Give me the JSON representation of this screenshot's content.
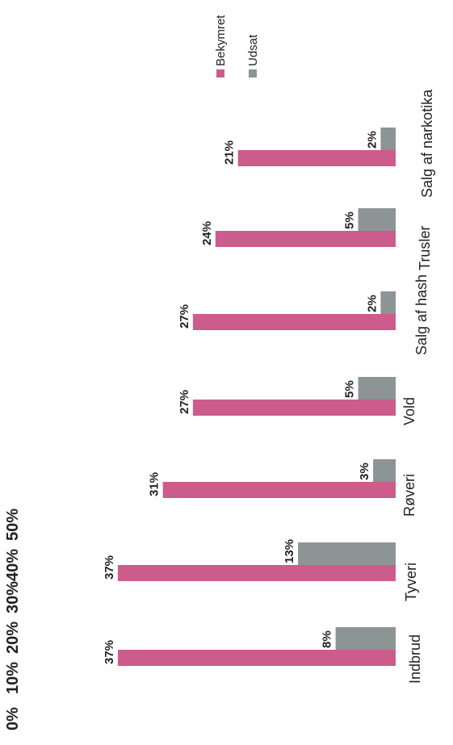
{
  "chart_data": {
    "type": "bar",
    "orientation": "horizontal",
    "categories": [
      "Indbrud",
      "Tyveri",
      "Røveri",
      "Vold",
      "Salg af hash",
      "Trusler",
      "Salg af narkotika"
    ],
    "series": [
      {
        "name": "Bekymret",
        "values": [
          37,
          37,
          31,
          27,
          27,
          24,
          21
        ],
        "labels": [
          "37%",
          "37%",
          "31%",
          "27%",
          "27%",
          "24%",
          "21%"
        ],
        "color": "#cc5c8c"
      },
      {
        "name": "Udsat",
        "values": [
          8,
          13,
          3,
          5,
          2,
          5,
          2
        ],
        "labels": [
          "8%",
          "13%",
          "3%",
          "5%",
          "2%",
          "5%",
          "2%"
        ],
        "color": "#8c9494"
      }
    ],
    "ticks": [
      0,
      10,
      20,
      30,
      40,
      50
    ],
    "tick_labels": [
      "0%",
      "10%",
      "20%",
      "30%",
      "40%",
      "50%"
    ],
    "xlim": [
      0,
      50
    ],
    "grid": false,
    "legend": "top-right"
  }
}
